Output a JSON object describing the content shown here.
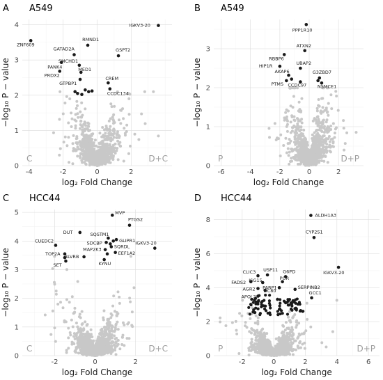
{
  "colors": {
    "significant": "#1a1a1a",
    "background_points": "#c8c8c8",
    "grid": "#dedede",
    "corner_label": "#9e9e9e"
  },
  "chart_data": [
    {
      "type": "scatter",
      "letter": "A",
      "title": "A549",
      "xlabel": "log₂ Fold Change",
      "ylabel": "−log₁₀ P − value",
      "xlim": [
        -4.4,
        4.4
      ],
      "ylim": [
        0,
        4.15
      ],
      "x_ticks": [
        -4,
        -2,
        0,
        2
      ],
      "y_ticks": [
        0,
        1,
        2,
        3,
        4
      ],
      "corner_left": "C",
      "corner_right": "D+C",
      "grid": true,
      "background_cloud": {
        "count": 900,
        "x_sd": 0.55,
        "y_peak": 2.0,
        "x_range": [
          -3.2,
          3.6
        ],
        "seed": 11
      },
      "points": [
        {
          "label": "IGKV3-20",
          "x": 3.6,
          "y": 3.98
        },
        {
          "label": "ZNF609",
          "x": -3.9,
          "y": 3.55
        },
        {
          "label": "RMND1",
          "x": -0.55,
          "y": 3.42
        },
        {
          "label": "GATAD2A",
          "x": -1.35,
          "y": 3.15
        },
        {
          "label": "GSPT2",
          "x": 1.25,
          "y": 3.12
        },
        {
          "label": "PANK4",
          "x": -2.1,
          "y": 2.93
        },
        {
          "label": "SMCHD1",
          "x": -1.05,
          "y": 2.85
        },
        {
          "label": "PRDX2",
          "x": -2.2,
          "y": 2.68
        },
        {
          "label": "MED1",
          "x": -0.95,
          "y": 2.65
        },
        {
          "label": "GTPBP1",
          "x": -1.0,
          "y": 2.45
        },
        {
          "label": "CREM",
          "x": 0.65,
          "y": 2.35
        },
        {
          "label": "CCDC134",
          "x": 0.75,
          "y": 2.18
        },
        {
          "label": "",
          "x": -1.3,
          "y": 2.1
        },
        {
          "label": "",
          "x": -1.15,
          "y": 2.05
        },
        {
          "label": "",
          "x": -0.7,
          "y": 2.15
        },
        {
          "label": "",
          "x": -0.5,
          "y": 2.1
        },
        {
          "label": "",
          "x": -0.3,
          "y": 2.12
        },
        {
          "label": "",
          "x": -0.9,
          "y": 2.02
        }
      ],
      "label_offsets": "auto"
    },
    {
      "type": "scatter",
      "letter": "B",
      "title": "A549",
      "xlabel": "log₂ Fold Change",
      "ylabel": "−log₁₀ P − value",
      "xlim": [
        -6.5,
        3.7
      ],
      "ylim": [
        0,
        3.75
      ],
      "x_ticks": [
        -6,
        -4,
        -2,
        0,
        2
      ],
      "y_ticks": [
        0,
        1,
        2,
        3
      ],
      "corner_left": "P",
      "corner_right": "D+P",
      "grid": true,
      "background_cloud": {
        "count": 900,
        "x_sd": 0.6,
        "y_peak": 1.9,
        "x_range": [
          -3.5,
          3.2
        ],
        "seed": 23
      },
      "points": [
        {
          "label": "PPP1R10",
          "x": -0.2,
          "y": 3.62
        },
        {
          "label": "ATXN2",
          "x": -0.3,
          "y": 2.95
        },
        {
          "label": "RBBP6",
          "x": -1.7,
          "y": 2.85
        },
        {
          "label": "HIP1R",
          "x": -2.0,
          "y": 2.55
        },
        {
          "label": "UBAP2",
          "x": -0.6,
          "y": 2.5
        },
        {
          "label": "AKAP6",
          "x": -1.4,
          "y": 2.32
        },
        {
          "label": "G3ZBD7",
          "x": 0.7,
          "y": 2.25
        },
        {
          "label": "PTMS",
          "x": -1.55,
          "y": 2.18
        },
        {
          "label": "CCDC97",
          "x": -0.6,
          "y": 2.15
        },
        {
          "label": "NSMCE1",
          "x": 0.85,
          "y": 2.12
        },
        {
          "label": "",
          "x": -1.2,
          "y": 2.22
        },
        {
          "label": "",
          "x": 0.6,
          "y": 2.18
        }
      ],
      "label_offsets": "auto"
    },
    {
      "type": "scatter",
      "letter": "C",
      "title": "HCC44",
      "xlabel": "log₂ Fold Change",
      "ylabel": "−log₁₀ P − value",
      "xlim": [
        -3.6,
        3.8
      ],
      "ylim": [
        0,
        5.1
      ],
      "x_ticks": [
        -2,
        0,
        2
      ],
      "y_ticks": [
        0,
        1,
        2,
        3,
        4,
        5
      ],
      "corner_left": "C",
      "corner_right": "D+C",
      "grid": true,
      "background_cloud": {
        "count": 1100,
        "x_sd": 0.45,
        "y_peak": 3.3,
        "x_range": [
          -3.3,
          3.6
        ],
        "seed": 37
      },
      "points": [
        {
          "label": "MVP",
          "x": 0.85,
          "y": 4.9
        },
        {
          "label": "PTGS2",
          "x": 1.7,
          "y": 4.55
        },
        {
          "label": "DUT",
          "x": -0.75,
          "y": 4.3
        },
        {
          "label": "SQSTM1",
          "x": 0.65,
          "y": 4.1
        },
        {
          "label": "GLIPR1",
          "x": 1.05,
          "y": 4.05
        },
        {
          "label": "SDCBP",
          "x": 0.55,
          "y": 3.95
        },
        {
          "label": "CUEDC2",
          "x": -1.95,
          "y": 3.85
        },
        {
          "label": "SQRDL",
          "x": 0.8,
          "y": 3.8
        },
        {
          "label": "IGKV3-20",
          "x": 2.95,
          "y": 3.75
        },
        {
          "label": "MAP2K3",
          "x": 0.5,
          "y": 3.7
        },
        {
          "label": "TOP2A",
          "x": -1.5,
          "y": 3.55
        },
        {
          "label": "EEF1A2",
          "x": 1.0,
          "y": 3.6
        },
        {
          "label": "BLVRB",
          "x": -0.55,
          "y": 3.45
        },
        {
          "label": "KYNU",
          "x": 0.45,
          "y": 3.35
        },
        {
          "label": "SET",
          "x": -1.45,
          "y": 3.3
        },
        {
          "label": "",
          "x": 0.75,
          "y": 3.9
        },
        {
          "label": "",
          "x": 0.9,
          "y": 4.0
        },
        {
          "label": "",
          "x": -1.5,
          "y": 3.42
        },
        {
          "label": "",
          "x": 0.6,
          "y": 3.55
        }
      ],
      "label_offsets": "auto"
    },
    {
      "type": "scatter",
      "letter": "D",
      "title": "HCC44",
      "xlabel": "log₂ Fold Change",
      "ylabel": "−log₁₀ P − value",
      "xlim": [
        -3.8,
        6.7
      ],
      "ylim": [
        0,
        8.6
      ],
      "x_ticks": [
        -2,
        0,
        2,
        4,
        6
      ],
      "y_ticks": [
        0,
        2,
        4,
        6,
        8
      ],
      "corner_left": "P",
      "corner_right": "D+P",
      "grid": true,
      "background_cloud": {
        "count": 1300,
        "x_sd": 0.55,
        "y_peak": 3.1,
        "x_range": [
          -3.4,
          6.4
        ],
        "seed": 53
      },
      "points": [
        {
          "label": "ALDH1A3",
          "x": 2.35,
          "y": 8.25
        },
        {
          "label": "CYP2S1",
          "x": 2.55,
          "y": 6.95
        },
        {
          "label": "IGKV3-20",
          "x": 4.1,
          "y": 5.2
        },
        {
          "label": "CLIC3",
          "x": -1.0,
          "y": 4.7
        },
        {
          "label": "USP11",
          "x": -0.4,
          "y": 4.75
        },
        {
          "label": "G6PD",
          "x": 0.75,
          "y": 4.65
        },
        {
          "label": "FADS2",
          "x": -1.45,
          "y": 4.35
        },
        {
          "label": "ISG15",
          "x": -0.7,
          "y": 4.3
        },
        {
          "label": "POR",
          "x": 0.55,
          "y": 4.35
        },
        {
          "label": "PARP1",
          "x": 0.35,
          "y": 4.0
        },
        {
          "label": "AGR2",
          "x": -1.0,
          "y": 3.95
        },
        {
          "label": "DC80",
          "x": -0.55,
          "y": 3.85
        },
        {
          "label": "SERPINB2",
          "x": 1.35,
          "y": 3.9
        },
        {
          "label": "APOL2",
          "x": -1.0,
          "y": 3.5
        },
        {
          "label": "GCC1",
          "x": 2.4,
          "y": 3.4
        }
      ],
      "dense_clusters": [
        {
          "x_range": [
            -1.6,
            -0.2
          ],
          "y_range": [
            2.4,
            3.6
          ],
          "count": 40,
          "seed": 71
        },
        {
          "x_range": [
            0.2,
            1.9
          ],
          "y_range": [
            2.4,
            3.4
          ],
          "count": 45,
          "seed": 83
        }
      ],
      "label_offsets": "auto"
    }
  ]
}
